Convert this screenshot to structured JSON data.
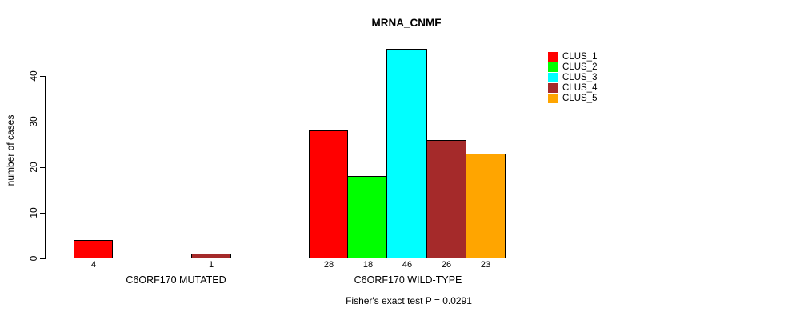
{
  "chart_data": {
    "type": "bar",
    "title": "MRNA_CNMF",
    "xlabel": "",
    "ylabel": "number of cases",
    "ylim": [
      0,
      46
    ],
    "yticks": [
      0,
      10,
      20,
      30,
      40
    ],
    "grid": false,
    "legend_position": "top-right",
    "annotation": "Fisher's exact test P = 0.0291",
    "series_colors": [
      "#FF0000",
      "#00FF00",
      "#00FFFF",
      "#A52A2A",
      "#FFA500"
    ],
    "legend": [
      {
        "label": "CLUS_1",
        "color": "#FF0000"
      },
      {
        "label": "CLUS_2",
        "color": "#00FF00"
      },
      {
        "label": "CLUS_3",
        "color": "#00FFFF"
      },
      {
        "label": "CLUS_4",
        "color": "#A52A2A"
      },
      {
        "label": "CLUS_5",
        "color": "#FFA500"
      }
    ],
    "groups": [
      {
        "label": "C6ORF170 MUTATED",
        "values": [
          4,
          0,
          0,
          1,
          0
        ],
        "value_labels": [
          "4",
          "",
          "",
          "1",
          ""
        ]
      },
      {
        "label": "C6ORF170 WILD-TYPE",
        "values": [
          28,
          18,
          46,
          26,
          23
        ],
        "value_labels": [
          "28",
          "18",
          "46",
          "26",
          "23"
        ]
      }
    ]
  }
}
